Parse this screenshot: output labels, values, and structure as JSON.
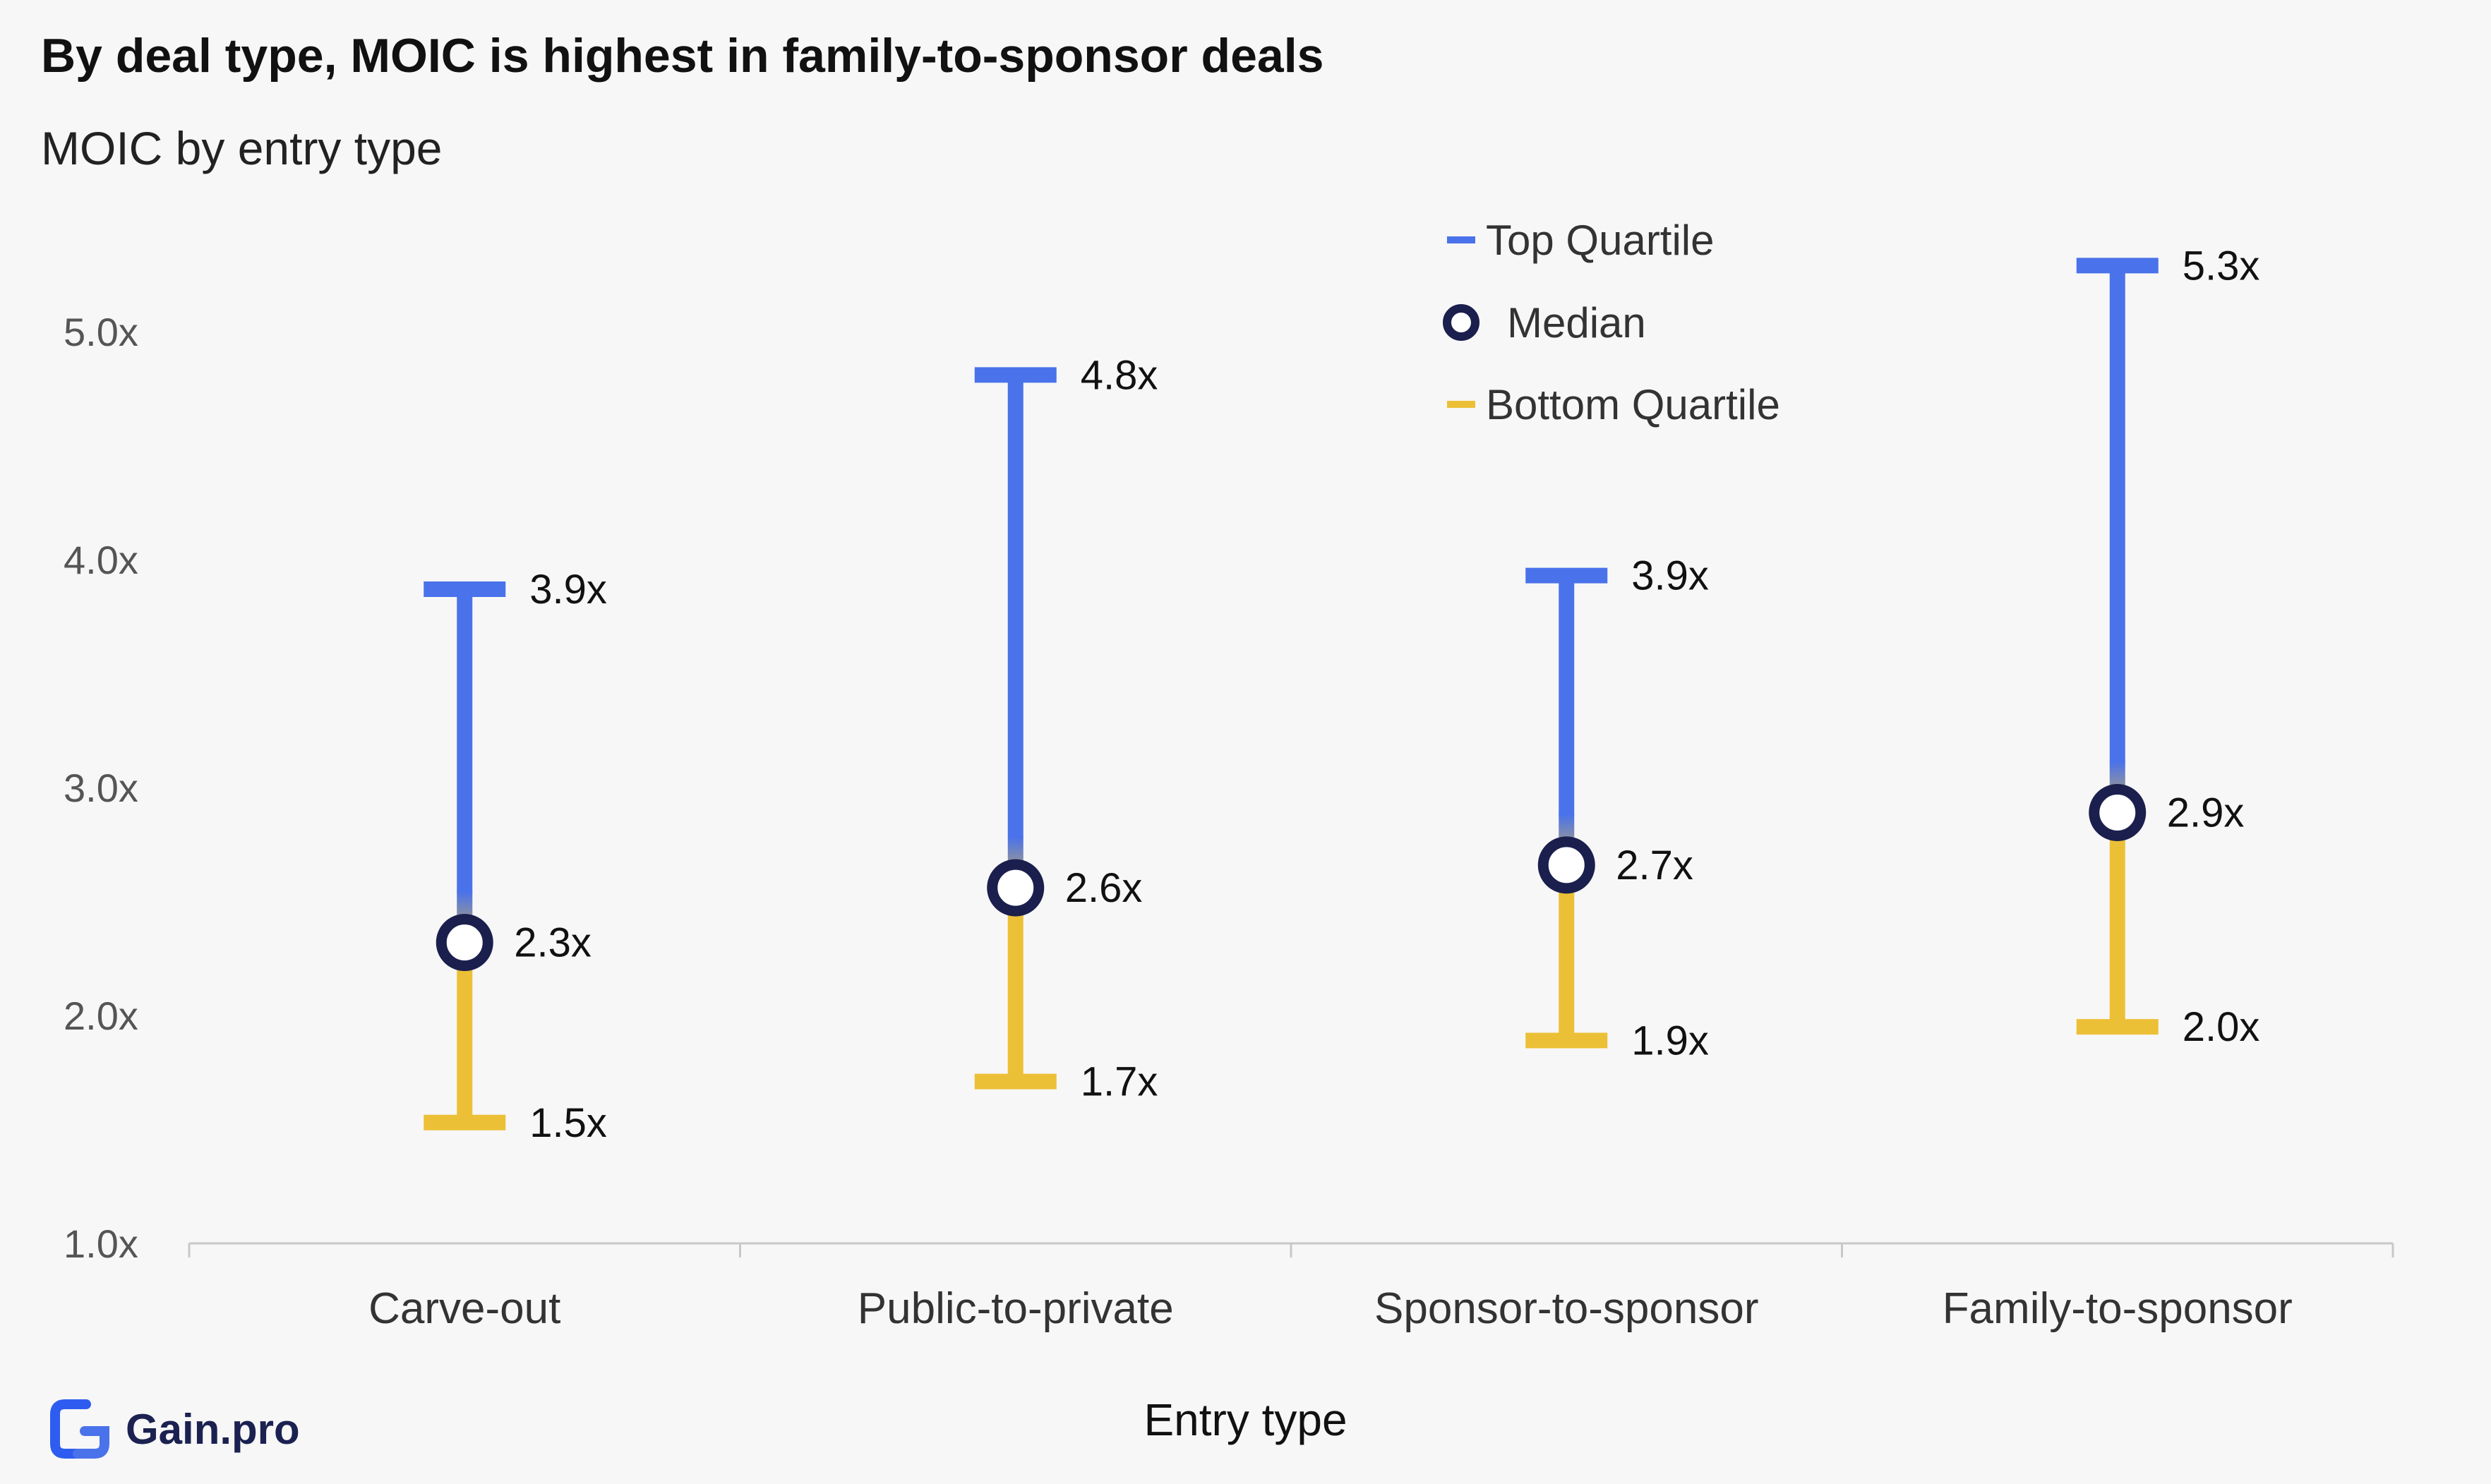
{
  "title": "By deal type, MOIC is highest in family-to-sponsor deals",
  "subtitle": "MOIC by entry type",
  "brand": "Gain.pro",
  "colors": {
    "top": "#4a72ea",
    "bottom": "#ecc036",
    "median_stroke": "#1b1f4d",
    "axis": "#c8c8c8",
    "tick_text": "#555555",
    "label_text": "#111111"
  },
  "chart_data": {
    "type": "range",
    "title": "MOIC by entry type",
    "xlabel": "Entry type",
    "ylabel": "",
    "ylim": [
      1.0,
      5.5
    ],
    "yticks": [
      1.0,
      2.0,
      3.0,
      4.0,
      5.0
    ],
    "ytick_labels": [
      "1.0x",
      "2.0x",
      "3.0x",
      "4.0x",
      "5.0x"
    ],
    "categories": [
      "Carve-out",
      "Public-to-private",
      "Sponsor-to-sponsor",
      "Family-to-sponsor"
    ],
    "series": [
      {
        "name": "Top Quartile",
        "values": [
          3.87,
          4.81,
          3.93,
          5.29
        ],
        "labels": [
          "3.9x",
          "4.8x",
          "3.9x",
          "5.3x"
        ]
      },
      {
        "name": "Median",
        "values": [
          2.32,
          2.56,
          2.66,
          2.89
        ],
        "labels": [
          "2.3x",
          "2.6x",
          "2.7x",
          "2.9x"
        ]
      },
      {
        "name": "Bottom Quartile",
        "values": [
          1.53,
          1.71,
          1.89,
          1.95
        ],
        "labels": [
          "1.5x",
          "1.7x",
          "1.9x",
          "2.0x"
        ]
      }
    ],
    "legend": {
      "placement": "top-center",
      "entries": [
        "Top Quartile",
        "Median",
        "Bottom Quartile"
      ]
    },
    "grid": false
  }
}
